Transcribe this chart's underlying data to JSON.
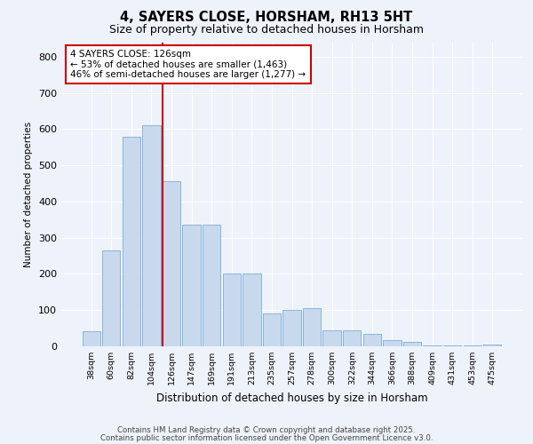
{
  "title1": "4, SAYERS CLOSE, HORSHAM, RH13 5HT",
  "title2": "Size of property relative to detached houses in Horsham",
  "xlabel": "Distribution of detached houses by size in Horsham",
  "ylabel": "Number of detached properties",
  "categories": [
    "38sqm",
    "60sqm",
    "82sqm",
    "104sqm",
    "126sqm",
    "147sqm",
    "169sqm",
    "191sqm",
    "213sqm",
    "235sqm",
    "257sqm",
    "278sqm",
    "300sqm",
    "322sqm",
    "344sqm",
    "366sqm",
    "388sqm",
    "409sqm",
    "431sqm",
    "453sqm",
    "475sqm"
  ],
  "values": [
    42,
    265,
    580,
    610,
    455,
    335,
    335,
    200,
    200,
    90,
    100,
    105,
    45,
    45,
    35,
    18,
    12,
    3,
    3,
    3,
    5
  ],
  "bar_color": "#c8d9ee",
  "bar_edge_color": "#7aadd4",
  "red_line_index": 4,
  "annotation_text": "4 SAYERS CLOSE: 126sqm\n← 53% of detached houses are smaller (1,463)\n46% of semi-detached houses are larger (1,277) →",
  "annotation_box_color": "#ffffff",
  "annotation_border_color": "#cc0000",
  "red_line_color": "#cc0000",
  "ylim": [
    0,
    840
  ],
  "yticks": [
    0,
    100,
    200,
    300,
    400,
    500,
    600,
    700,
    800
  ],
  "footer1": "Contains HM Land Registry data © Crown copyright and database right 2025.",
  "footer2": "Contains public sector information licensed under the Open Government Licence v3.0.",
  "bg_color": "#eef2fb",
  "plot_bg_color": "#eef2fb",
  "grid_color": "#ffffff"
}
